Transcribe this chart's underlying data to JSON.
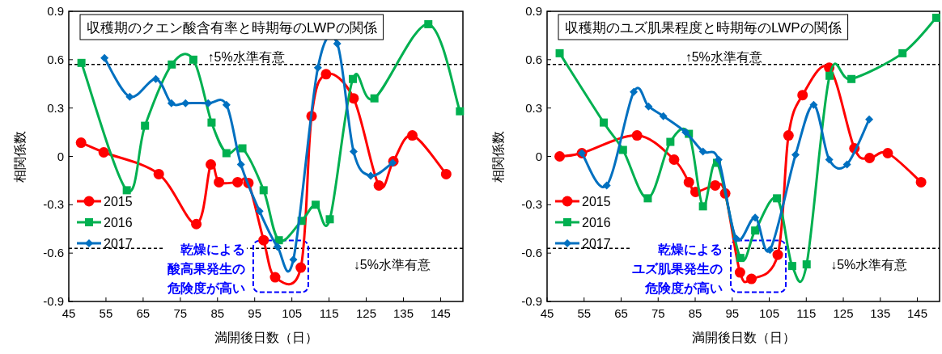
{
  "chart_data": [
    {
      "type": "line",
      "title": "収穫期のクエン酸含有率と時期毎のLWPの関係",
      "xlabel": "満開後日数（日）",
      "ylabel": "相関係数",
      "xlim": [
        45,
        151
      ],
      "xticks": [
        45,
        55,
        65,
        75,
        85,
        95,
        105,
        115,
        125,
        135,
        145
      ],
      "ylim": [
        -0.9,
        0.9
      ],
      "yticks": [
        -0.9,
        -0.6,
        -0.3,
        0,
        0.3,
        0.6,
        0.9
      ],
      "legend": "bottom left",
      "series": [
        {
          "name": "2015",
          "color": "#ff0000",
          "marker": "circle",
          "x": [
            48.3,
            54.4,
            69.2,
            79.3,
            83.2,
            85.4,
            90.4,
            93.3,
            97.4,
            100.5,
            107.4,
            110.3,
            114.2,
            121.6,
            128.4,
            132.3,
            137.4,
            146.5
          ],
          "values": [
            0.085,
            0.025,
            -0.11,
            -0.42,
            -0.05,
            -0.16,
            -0.16,
            -0.165,
            -0.52,
            -0.75,
            -0.69,
            0.25,
            0.51,
            0.36,
            -0.18,
            -0.03,
            0.13,
            -0.11
          ]
        },
        {
          "name": "2016",
          "color": "#00b050",
          "marker": "square",
          "x": [
            48.4,
            60.6,
            65.5,
            72.7,
            78.5,
            83.4,
            87.4,
            91.7,
            97.4,
            101.5,
            107.6,
            111.4,
            115.2,
            121.4,
            127.2,
            141.7,
            150.2
          ],
          "values": [
            0.58,
            -0.21,
            0.19,
            0.57,
            0.6,
            0.21,
            0.02,
            0.05,
            -0.21,
            -0.52,
            -0.4,
            -0.3,
            -0.39,
            0.48,
            0.36,
            0.82,
            0.28
          ]
        },
        {
          "name": "2017",
          "color": "#0070c0",
          "marker": "diamond",
          "x": [
            54.6,
            61.4,
            68.4,
            72.6,
            76.4,
            82.5,
            87.4,
            91.3,
            96.3,
            101.1,
            105.4,
            112.0,
            117.2,
            121.6,
            126.2,
            132.1
          ],
          "values": [
            0.61,
            0.37,
            0.48,
            0.33,
            0.33,
            0.33,
            0.32,
            -0.05,
            -0.34,
            -0.56,
            -0.64,
            0.55,
            0.7,
            0.03,
            -0.12,
            -0.04
          ]
        }
      ],
      "ref_lines": [
        {
          "axis": "y",
          "value": 0.57,
          "label": "↑5%水準有意",
          "color": "#000000",
          "line_style": "dashed"
        },
        {
          "axis": "y",
          "value": -0.57,
          "label": "↓5%水準有意",
          "color": "#000000",
          "line_style": "dashed"
        }
      ],
      "annotations": [
        "乾燥による",
        "酸高果発生の",
        "危険度が高い"
      ]
    },
    {
      "type": "line",
      "title": "収穫期のユズ肌果程度と時期毎のLWPの関係",
      "xlabel": "満開後日数（日）",
      "ylabel": "相関係数",
      "xlim": [
        45,
        151
      ],
      "xticks": [
        45,
        55,
        65,
        75,
        85,
        95,
        105,
        115,
        125,
        135,
        145
      ],
      "ylim": [
        -0.9,
        0.9
      ],
      "yticks": [
        -0.9,
        -0.6,
        -0.3,
        0,
        0.3,
        0.6,
        0.9
      ],
      "legend": "bottom left",
      "series": [
        {
          "name": "2015",
          "color": "#ff0000",
          "marker": "circle",
          "x": [
            48.4,
            54.4,
            69.3,
            79.3,
            83.3,
            85.1,
            90.4,
            93.1,
            97.1,
            100.2,
            107.3,
            110.2,
            114.0,
            121.2,
            128.0,
            132.1,
            137.0,
            146.0
          ],
          "values": [
            0.0,
            0.02,
            0.13,
            -0.02,
            -0.16,
            -0.22,
            -0.18,
            -0.23,
            -0.72,
            -0.76,
            -0.61,
            0.13,
            0.38,
            0.55,
            0.05,
            -0.01,
            0.02,
            -0.16
          ]
        },
        {
          "name": "2016",
          "color": "#00b050",
          "marker": "square",
          "x": [
            48.4,
            60.3,
            65.5,
            72.2,
            78.3,
            83.3,
            87.1,
            90.9,
            97.2,
            101.2,
            107.1,
            111.2,
            115.1,
            121.3,
            127.2,
            141.0,
            150.1
          ],
          "values": [
            0.64,
            0.21,
            0.04,
            -0.26,
            0.09,
            0.14,
            -0.31,
            -0.04,
            -0.63,
            -0.46,
            -0.26,
            -0.68,
            -0.67,
            0.5,
            0.48,
            0.64,
            0.86
          ]
        },
        {
          "name": "2017",
          "color": "#0070c0",
          "marker": "diamond",
          "x": [
            54.4,
            61.1,
            68.4,
            72.4,
            76.4,
            82.4,
            87.1,
            91.3,
            96.1,
            101.2,
            105.2,
            112.1,
            117.0,
            121.2,
            126.0,
            132.0
          ],
          "values": [
            0.02,
            -0.18,
            0.4,
            0.31,
            0.25,
            0.15,
            0.03,
            -0.02,
            -0.51,
            -0.38,
            -0.58,
            0.01,
            0.32,
            -0.02,
            -0.05,
            0.23
          ]
        }
      ],
      "ref_lines": [
        {
          "axis": "y",
          "value": 0.57,
          "label": "↑5%水準有意",
          "color": "#000000",
          "line_style": "dashed"
        },
        {
          "axis": "y",
          "value": -0.57,
          "label": "↓5%水準有意",
          "color": "#000000",
          "line_style": "dashed"
        }
      ],
      "annotations": [
        "乾燥による",
        "ユズ肌果発生の",
        "危険度が高い"
      ]
    }
  ]
}
